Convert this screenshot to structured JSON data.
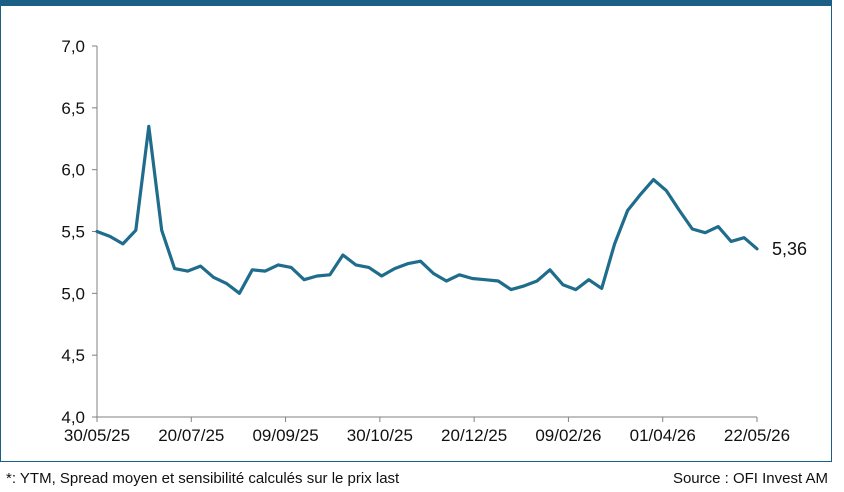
{
  "colors": {
    "accent": "#1b5e86",
    "line": "#1f6c8c",
    "axis": "#808080"
  },
  "chart_data": {
    "type": "line",
    "ylim": [
      4.0,
      7.0
    ],
    "y_ticks": [
      "4,0",
      "4,5",
      "5,0",
      "5,5",
      "6,0",
      "6,5",
      "7,0"
    ],
    "x_tick_labels": [
      "30/05/25",
      "20/07/25",
      "09/09/25",
      "30/10/25",
      "20/12/25",
      "09/02/26",
      "01/04/26",
      "22/05/26"
    ],
    "end_label": "5,36",
    "series": [
      {
        "name": "",
        "values": [
          5.5,
          5.46,
          5.4,
          5.51,
          6.35,
          5.51,
          5.2,
          5.18,
          5.22,
          5.13,
          5.08,
          5.0,
          5.19,
          5.18,
          5.23,
          5.21,
          5.11,
          5.14,
          5.15,
          5.31,
          5.23,
          5.21,
          5.14,
          5.2,
          5.24,
          5.26,
          5.16,
          5.1,
          5.15,
          5.12,
          5.11,
          5.1,
          5.03,
          5.06,
          5.1,
          5.19,
          5.07,
          5.03,
          5.11,
          5.04,
          5.4,
          5.67,
          5.8,
          5.92,
          5.83,
          5.67,
          5.52,
          5.49,
          5.54,
          5.42,
          5.45,
          5.36
        ]
      }
    ]
  },
  "footer": {
    "footnote": "*: YTM, Spread moyen et sensibilité calculés sur le prix last",
    "source": "Source : OFI Invest AM"
  }
}
